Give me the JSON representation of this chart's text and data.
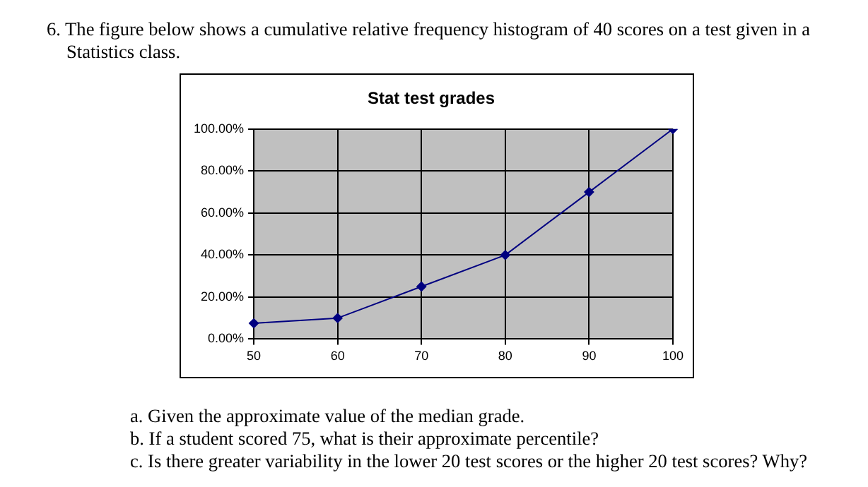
{
  "chart_data": {
    "type": "line",
    "title": "Stat test grades",
    "categories": [
      "50",
      "60",
      "70",
      "80",
      "90",
      "100"
    ],
    "series": [
      {
        "color": "#000080",
        "values": [
          7.5,
          10,
          25,
          40,
          70,
          100
        ]
      }
    ],
    "ylim": [
      0,
      100
    ],
    "yticks": [
      {
        "value": 0,
        "label": "0.00%"
      },
      {
        "value": 20,
        "label": "20.00%"
      },
      {
        "value": 40,
        "label": "40.00%"
      },
      {
        "value": 60,
        "label": "60.00%"
      },
      {
        "value": 80,
        "label": "80.00%"
      },
      {
        "value": 100,
        "label": "100.00%"
      }
    ],
    "grid": true,
    "legend": false,
    "marker": "diamond",
    "line_style": "solid",
    "annotations": [
      "6. The figure below shows a cumulative relative frequency histogram of 40 scores on a test given in a Statistics class.",
      "a. Given the approximate value of the median grade.",
      "b. If a student scored 75, what is their approximate percentile?",
      "c. Is there greater variability in the lower 20 test scores or the higher 20 test scores? Why?"
    ]
  }
}
